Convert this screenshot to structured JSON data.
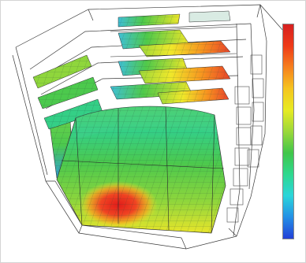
{
  "colorbar": {
    "colors": [
      "#d62020",
      "#ee3a18",
      "#f6801e",
      "#f5c51f",
      "#e7eb23",
      "#9bd83a",
      "#40c64a",
      "#2ed88f",
      "#2bd5da",
      "#2490e6",
      "#2340d7"
    ],
    "unit_lines": [
      "",
      ""
    ],
    "ticks": [
      "",
      "",
      "",
      "",
      "",
      "",
      "",
      "",
      "",
      "",
      ""
    ]
  },
  "heat_scale": {
    "red": "#e8221c",
    "orange": "#f7921f",
    "yellow": "#f0e82a",
    "green": "#4fc94a",
    "cyan": "#2bd0c8",
    "blue": "#2b7fe0"
  }
}
